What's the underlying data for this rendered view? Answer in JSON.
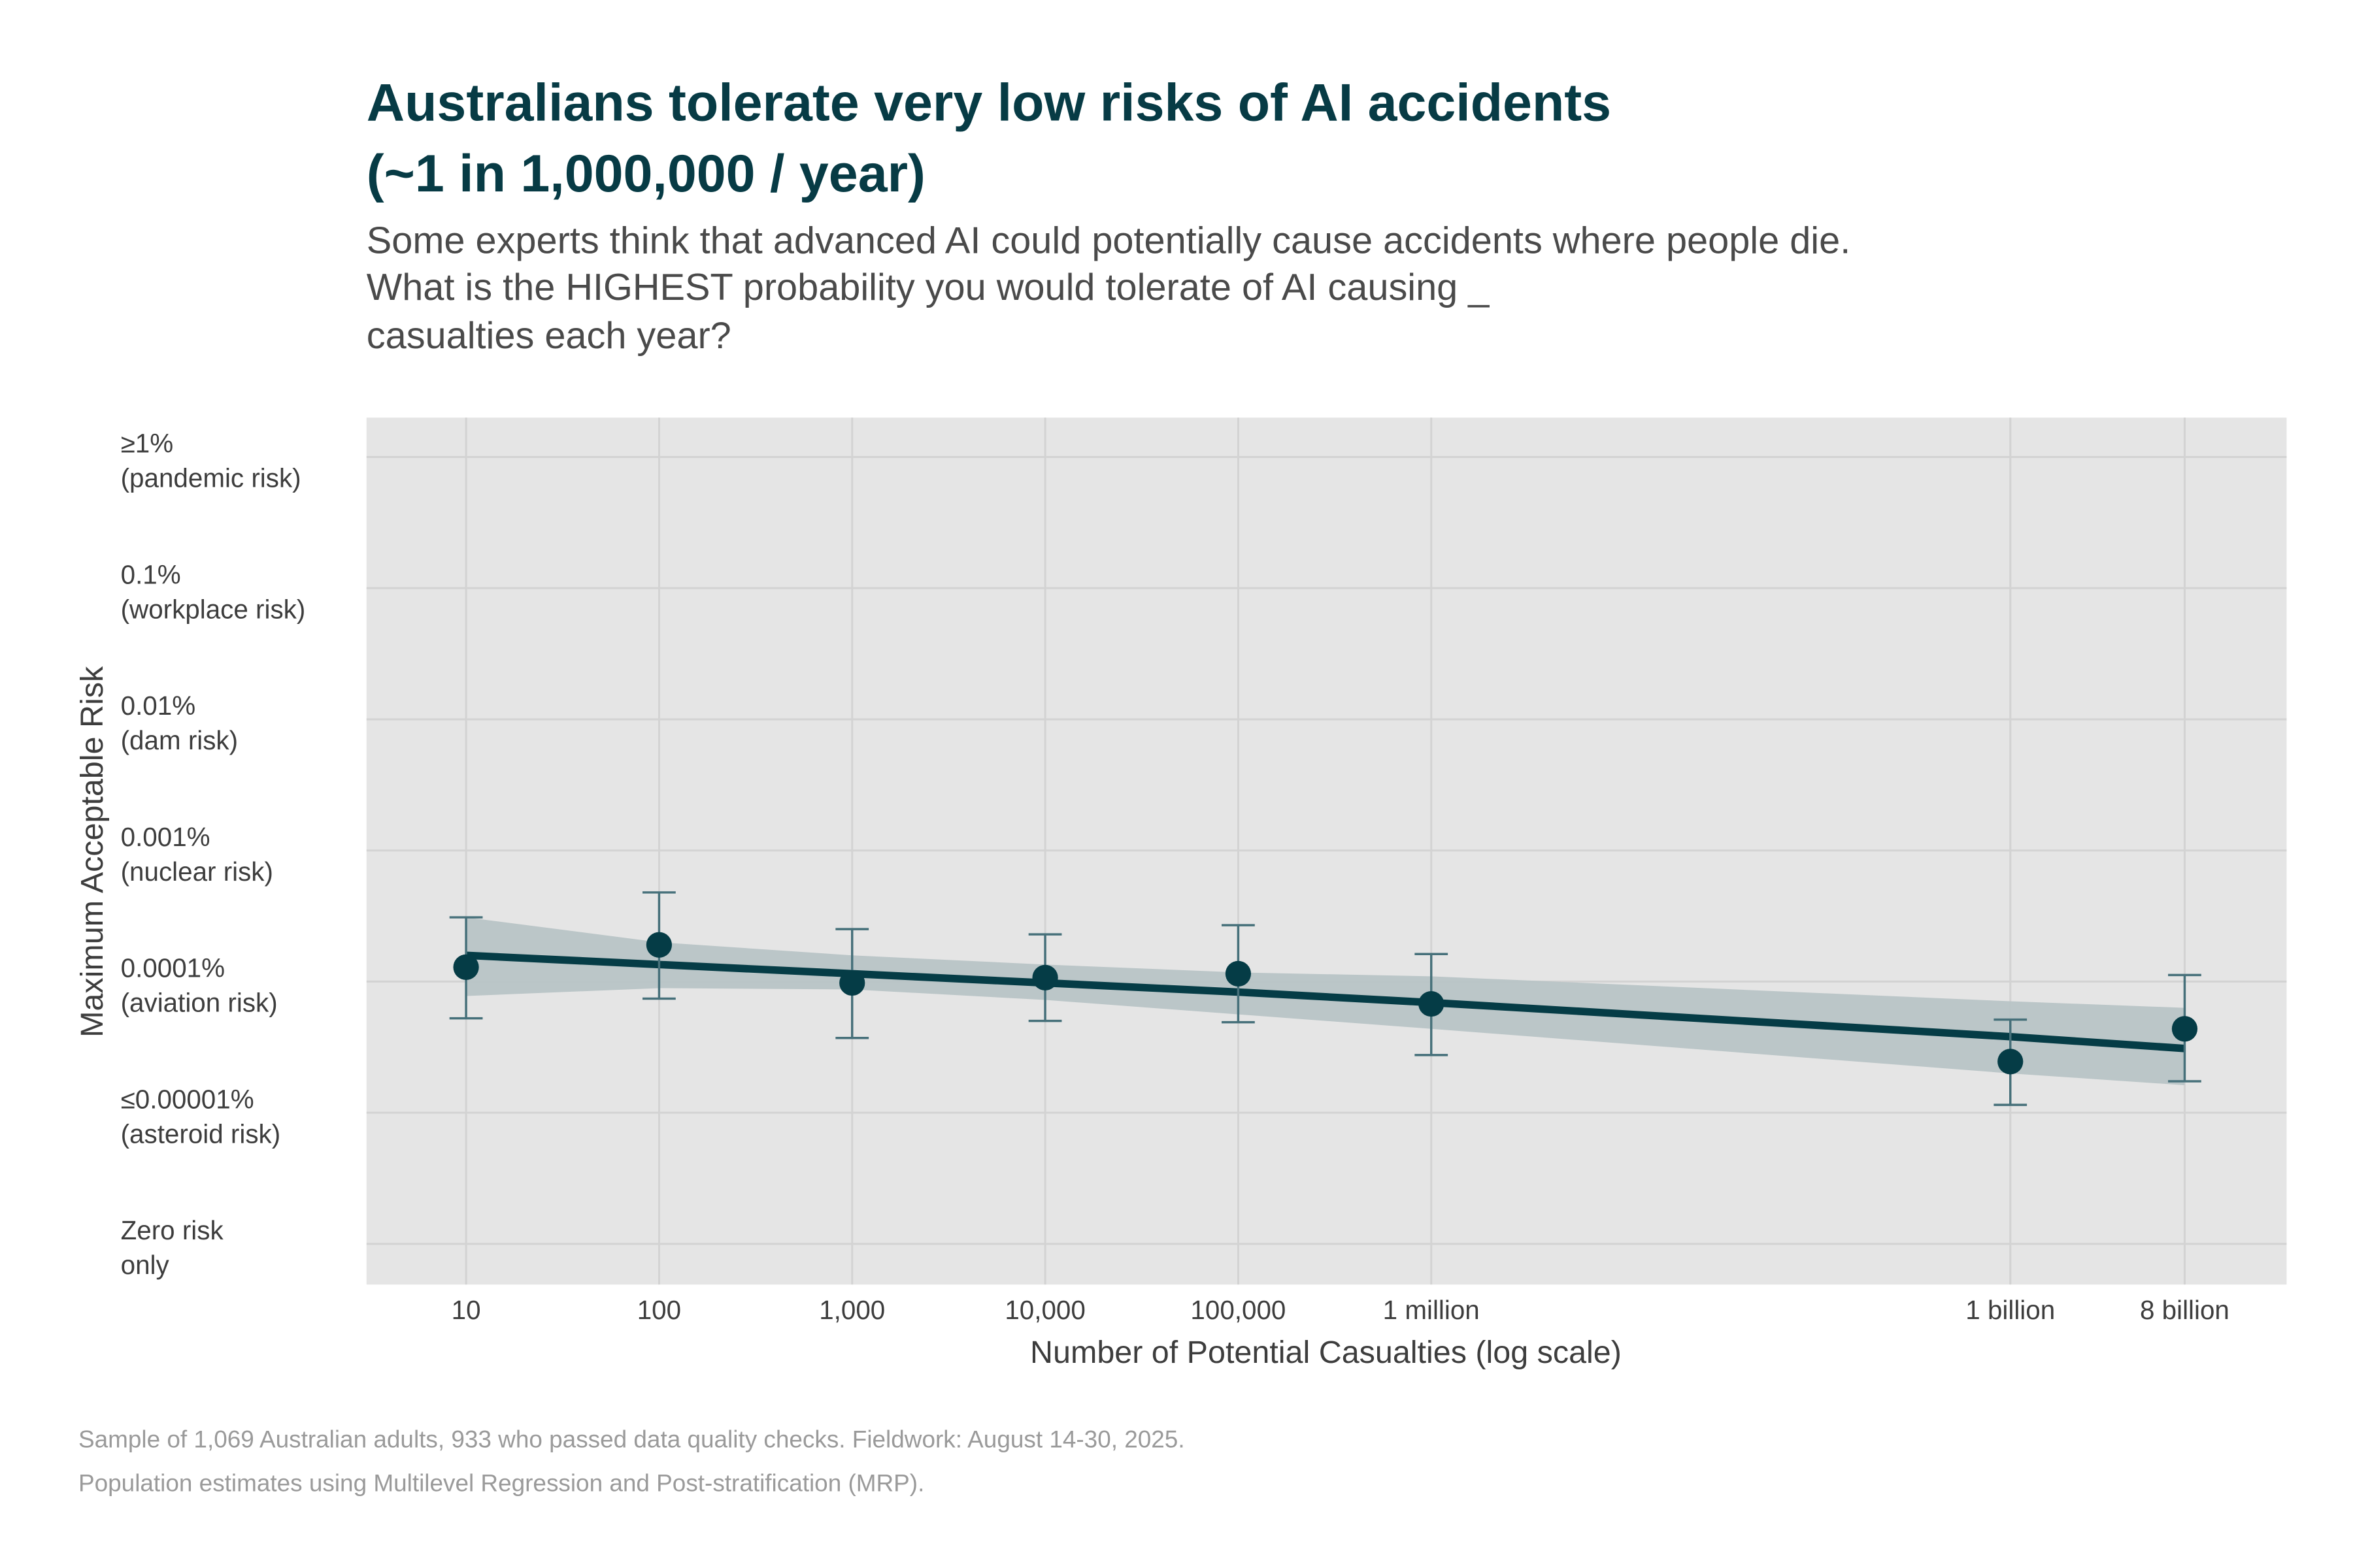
{
  "title_lines": [
    "Australians tolerate very low risks of AI accidents",
    "(~1 in 1,000,000 / year)"
  ],
  "subtitle_lines": [
    "Some experts think that advanced AI could potentially cause accidents where people die.",
    "What is the HIGHEST probability you would tolerate of AI causing _",
    "casualties each year?"
  ],
  "caption_lines": [
    "Sample of 1,069 Australian adults, 933 who passed data quality checks. Fieldwork: August 14-30, 2025.",
    "Population estimates using Multilevel Regression and Post-stratification (MRP)."
  ],
  "colors": {
    "title": "#073b45",
    "point": "#053c46",
    "errorbar": "#46707a",
    "band": "#b8c4c6",
    "panel": "#e5e5e5",
    "grid": "#d3d3d3"
  },
  "chart_data": {
    "type": "scatter",
    "xlabel": "Number of Potential Casualties (log scale)",
    "ylabel": "Maximum Acceptable Risk",
    "x_scale": "log10",
    "y_scale": "ordinal log risk levels (log10 of percent)",
    "xlim": [
      3.05,
      27000000000.0
    ],
    "ylim": [
      -6.31,
      0.3
    ],
    "grid": true,
    "x_ticks": [
      {
        "value": 10,
        "label": "10"
      },
      {
        "value": 100,
        "label": "100"
      },
      {
        "value": 1000,
        "label": "1,000"
      },
      {
        "value": 10000,
        "label": "10,000"
      },
      {
        "value": 100000,
        "label": "100,000"
      },
      {
        "value": 1000000,
        "label": "1 million"
      },
      {
        "value": 1000000000,
        "label": "1 billion"
      },
      {
        "value": 8000000000,
        "label": "8 billion"
      }
    ],
    "y_ticks": [
      {
        "value": 0,
        "label": [
          "≥1%",
          "(pandemic risk)"
        ]
      },
      {
        "value": -1,
        "label": [
          "0.1%",
          "(workplace risk)"
        ]
      },
      {
        "value": -2,
        "label": [
          "0.01%",
          "(dam risk)"
        ]
      },
      {
        "value": -3,
        "label": [
          "0.001%",
          "(nuclear risk)"
        ]
      },
      {
        "value": -4,
        "label": [
          "0.0001%",
          "(aviation risk)"
        ]
      },
      {
        "value": -5,
        "label": [
          "≤0.00001%",
          "(asteroid risk)"
        ]
      },
      {
        "value": -6,
        "label": [
          "Zero risk",
          "only"
        ]
      }
    ],
    "points": [
      {
        "x": 10,
        "y": -3.89,
        "lo": -4.28,
        "hi": -3.51
      },
      {
        "x": 100,
        "y": -3.72,
        "lo": -4.13,
        "hi": -3.32
      },
      {
        "x": 1000,
        "y": -4.01,
        "lo": -4.43,
        "hi": -3.6
      },
      {
        "x": 10000,
        "y": -3.97,
        "lo": -4.3,
        "hi": -3.64
      },
      {
        "x": 100000,
        "y": -3.94,
        "lo": -4.31,
        "hi": -3.57
      },
      {
        "x": 1000000,
        "y": -4.17,
        "lo": -4.56,
        "hi": -3.79
      },
      {
        "x": 1000000000,
        "y": -4.61,
        "lo": -4.94,
        "hi": -4.29
      },
      {
        "x": 8000000000,
        "y": -4.36,
        "lo": -4.76,
        "hi": -3.95
      }
    ],
    "fit": {
      "x": [
        10,
        100,
        1000,
        10000,
        100000,
        1000000,
        1000000000,
        8000000000
      ],
      "y": [
        -3.8,
        -3.87,
        -3.94,
        -4.01,
        -4.08,
        -4.16,
        -4.42,
        -4.51
      ],
      "lo": [
        -4.11,
        -4.05,
        -4.06,
        -4.14,
        -4.25,
        -4.36,
        -4.7,
        -4.79
      ],
      "hi": [
        -3.51,
        -3.7,
        -3.8,
        -3.87,
        -3.93,
        -3.96,
        -4.15,
        -4.2
      ]
    }
  }
}
